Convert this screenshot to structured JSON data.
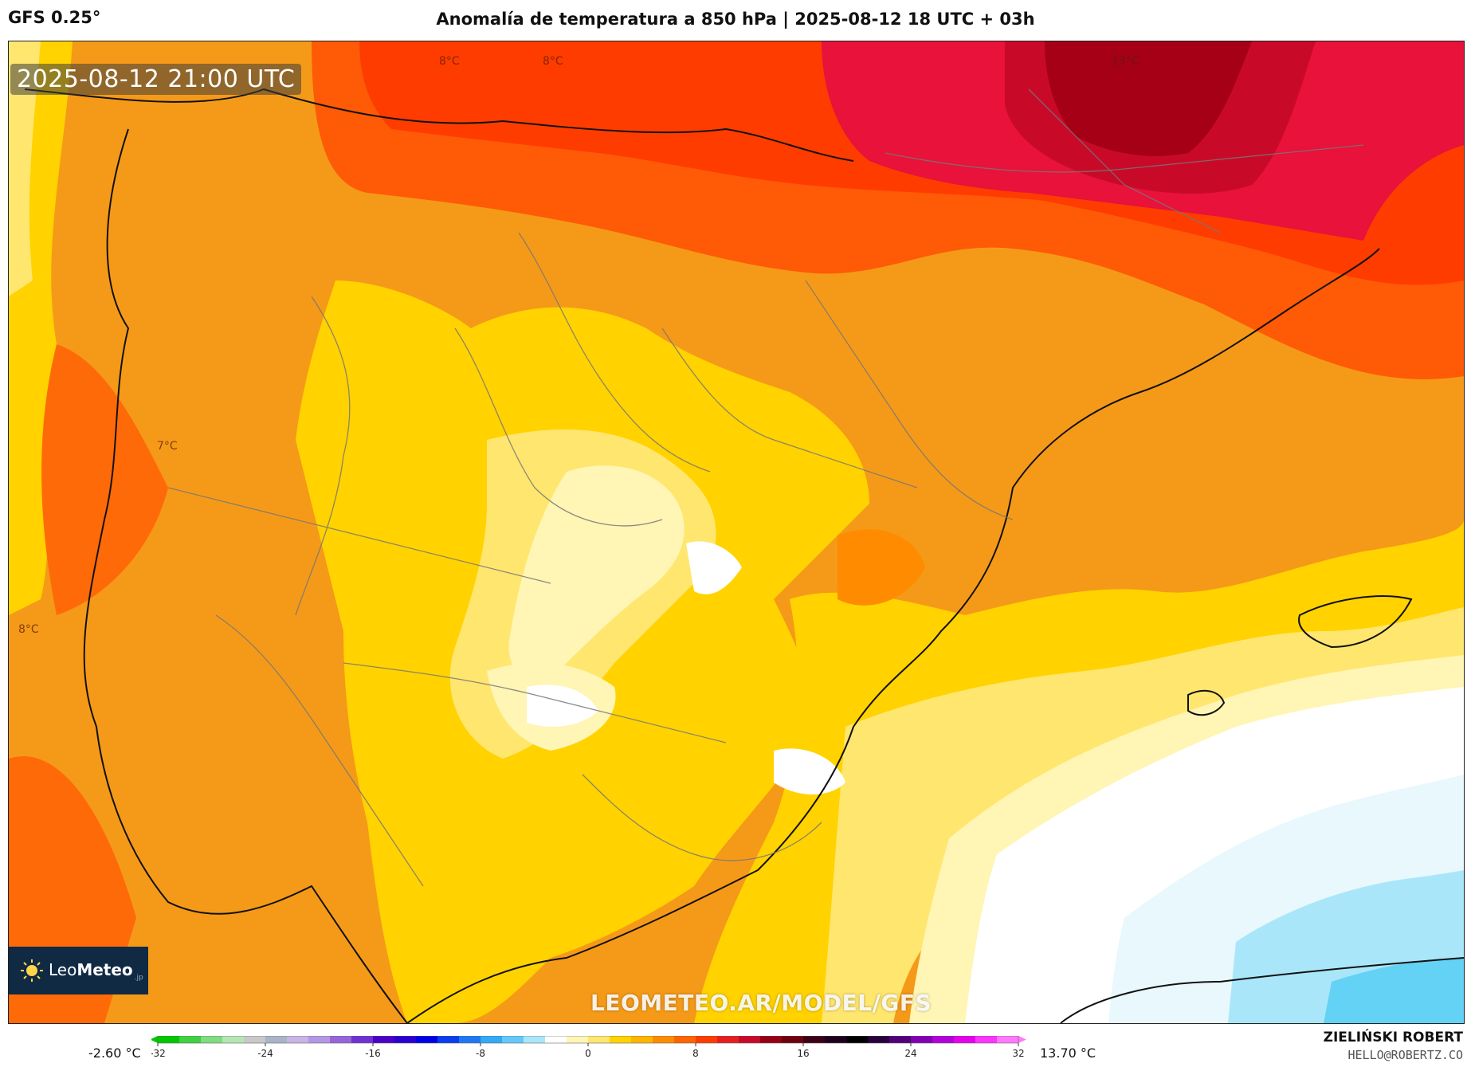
{
  "header": {
    "model": "GFS 0.25°",
    "title": "Anomalía de temperatura a 850 hPa | 2025-08-12 18 UTC + 03h"
  },
  "map": {
    "valid_time": "2025-08-12 21:00 UTC",
    "watermark": "LEOMETEO.AR/MODEL/GFS",
    "value_labels": [
      "8°C",
      "8°C",
      "13°C",
      "7°C",
      "8°C"
    ]
  },
  "logo": {
    "name_light": "Leo",
    "name_bold": "Meteo",
    "suffix": ".jp"
  },
  "colorbar": {
    "min_label": "-2.60 °C",
    "max_label": "13.70 °C",
    "ticks": [
      "-32",
      "-24",
      "-16",
      "-8",
      "0",
      "8",
      "16",
      "24",
      "32"
    ],
    "tick_values": [
      -32,
      -24,
      -16,
      -8,
      0,
      8,
      16,
      24,
      32
    ],
    "range": [
      -32,
      32
    ],
    "colors": [
      "#00c800",
      "#3ed23e",
      "#7fdc7f",
      "#b4e6b4",
      "#c8c8c8",
      "#aab4c8",
      "#c8b4e6",
      "#b496e6",
      "#9664dc",
      "#6e32d2",
      "#4b00c8",
      "#2800d2",
      "#0000e6",
      "#0a3cf0",
      "#1e78f5",
      "#32aaf5",
      "#64c8fa",
      "#aae6fa",
      "#ffffff",
      "#fff5b4",
      "#ffe66e",
      "#ffd200",
      "#ffb400",
      "#ff8c00",
      "#ff6400",
      "#ff3c00",
      "#e61e1e",
      "#c80a28",
      "#960014",
      "#6e0010",
      "#3c0014",
      "#1e001e",
      "#000000",
      "#28003c",
      "#500078",
      "#8200b4",
      "#b400dc",
      "#e600f0",
      "#ff32ff",
      "#ff78ff"
    ],
    "colors_note": "gradient colours of the colour scale"
  },
  "credits": {
    "author": "ZIELIŃSKI ROBERT",
    "email": "HELLO@ROBERTZ.CO"
  }
}
